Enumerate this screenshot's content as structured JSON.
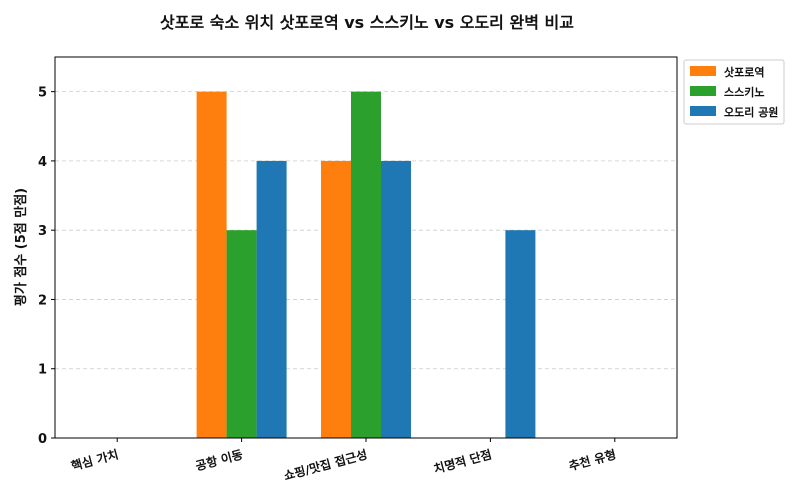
{
  "chart_data": {
    "type": "bar",
    "title": "삿포로 숙소 위치 삿포로역 vs 스스키노 vs 오도리 완벽 비교",
    "xlabel": "",
    "ylabel": "평가 점수 (5점 만점)",
    "categories": [
      "핵심 가치",
      "공항 이동",
      "쇼핑/맛집 접근성",
      "치명적 단점",
      "추천 유형"
    ],
    "series": [
      {
        "name": "삿포로역",
        "color": "#ff7f0e",
        "values": [
          0,
          5,
          4,
          0,
          0
        ]
      },
      {
        "name": "스스키노",
        "color": "#2ca02c",
        "values": [
          0,
          3,
          5,
          0,
          0
        ]
      },
      {
        "name": "오도리 공원",
        "color": "#1f77b4",
        "values": [
          0,
          4,
          4,
          3,
          0
        ]
      }
    ],
    "ylim": [
      0,
      5.5
    ],
    "yticks": [
      0,
      1,
      2,
      3,
      4,
      5
    ],
    "grid": "horizontal-dashed",
    "legend_position": "outside-top-right"
  }
}
